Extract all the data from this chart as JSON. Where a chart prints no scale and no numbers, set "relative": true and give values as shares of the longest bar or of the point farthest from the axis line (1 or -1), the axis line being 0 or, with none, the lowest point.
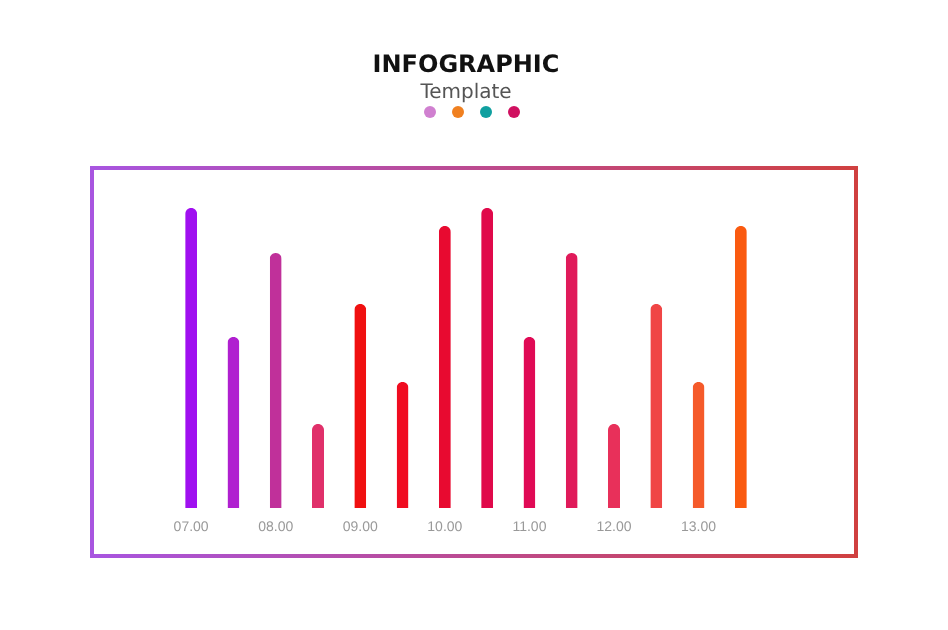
{
  "chart_data": {
    "type": "bar",
    "title": "INFOGRAPHIC",
    "subtitle": "Template",
    "relative": true,
    "categories": [
      "07.00",
      null,
      "08.00",
      null,
      "09.00",
      null,
      "10.00",
      null,
      "11.00",
      null,
      "12.00",
      null,
      "13.00",
      null
    ],
    "values": [
      1,
      0.57,
      0.85,
      0.28,
      0.68,
      0.42,
      0.94,
      1,
      0.57,
      0.85,
      0.28,
      0.68,
      0.42,
      0.94
    ],
    "colors": [
      "#a010f0",
      "#b020d0",
      "#c0309a",
      "#e0306a",
      "#f01010",
      "#f00c20",
      "#e80a30",
      "#e0094a",
      "#e00a55",
      "#e01a5a",
      "#e8305a",
      "#f04545",
      "#f55a2a",
      "#fa5a10"
    ]
  }
}
